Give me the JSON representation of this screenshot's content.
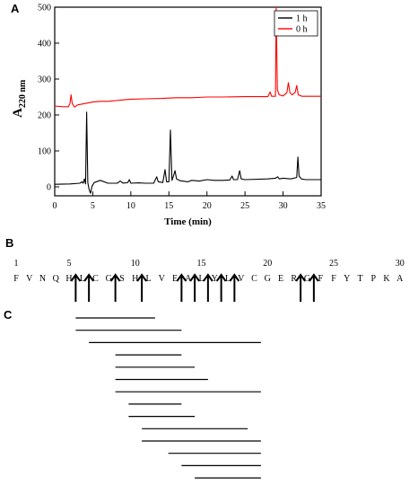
{
  "panels": {
    "a": "A",
    "b": "B",
    "c": "C"
  },
  "chart_data": {
    "type": "line",
    "xlabel": "Time (min)",
    "ylabel": "A",
    "ylabel_sub": "220 nm",
    "xlim": [
      0,
      35
    ],
    "ylim": [
      -25,
      500
    ],
    "x_ticks": [
      0,
      5,
      10,
      15,
      20,
      25,
      30,
      35
    ],
    "y_ticks": [
      0,
      100,
      200,
      300,
      400,
      500
    ],
    "legend": "top-right",
    "series": [
      {
        "name": "1 h",
        "color": "#000000",
        "points": [
          [
            0,
            7
          ],
          [
            2,
            8
          ],
          [
            3.3,
            10
          ],
          [
            3.6,
            14
          ],
          [
            3.75,
            10
          ],
          [
            3.9,
            22
          ],
          [
            4.05,
            8
          ],
          [
            4.2,
            208
          ],
          [
            4.35,
            12
          ],
          [
            4.5,
            -6
          ],
          [
            4.7,
            -18
          ],
          [
            4.9,
            2
          ],
          [
            5.2,
            12
          ],
          [
            6,
            18
          ],
          [
            7,
            10
          ],
          [
            8.2,
            10
          ],
          [
            8.6,
            16
          ],
          [
            9,
            10
          ],
          [
            9.6,
            12
          ],
          [
            9.8,
            20
          ],
          [
            10,
            10
          ],
          [
            11,
            11
          ],
          [
            12,
            10
          ],
          [
            13,
            10
          ],
          [
            13.4,
            28
          ],
          [
            13.6,
            14
          ],
          [
            14.2,
            12
          ],
          [
            14.5,
            48
          ],
          [
            14.7,
            14
          ],
          [
            15,
            14
          ],
          [
            15.2,
            158
          ],
          [
            15.4,
            18
          ],
          [
            15.6,
            30
          ],
          [
            15.8,
            45
          ],
          [
            16,
            22
          ],
          [
            16.5,
            17
          ],
          [
            17.5,
            14
          ],
          [
            18,
            18
          ],
          [
            19,
            16
          ],
          [
            20,
            20
          ],
          [
            21,
            18
          ],
          [
            22,
            18
          ],
          [
            23,
            19
          ],
          [
            23.3,
            30
          ],
          [
            23.5,
            20
          ],
          [
            24,
            20
          ],
          [
            24.3,
            45
          ],
          [
            24.5,
            22
          ],
          [
            25,
            20
          ],
          [
            28,
            22
          ],
          [
            29,
            24
          ],
          [
            29.3,
            28
          ],
          [
            29.5,
            22
          ],
          [
            30,
            24
          ],
          [
            31,
            22
          ],
          [
            31.8,
            26
          ],
          [
            31.95,
            83
          ],
          [
            32.1,
            30
          ],
          [
            32.4,
            22
          ],
          [
            33,
            20
          ],
          [
            35,
            20
          ]
        ]
      },
      {
        "name": "0 h",
        "color": "#ff0000",
        "points": [
          [
            0,
            225
          ],
          [
            1,
            223
          ],
          [
            1.8,
            223
          ],
          [
            2,
            232
          ],
          [
            2.15,
            256
          ],
          [
            2.3,
            232
          ],
          [
            2.6,
            222
          ],
          [
            3,
            228
          ],
          [
            4,
            232
          ],
          [
            5,
            236
          ],
          [
            6,
            238
          ],
          [
            7,
            238
          ],
          [
            8,
            240
          ],
          [
            9,
            242
          ],
          [
            10,
            244
          ],
          [
            12,
            245
          ],
          [
            14,
            246
          ],
          [
            16,
            248
          ],
          [
            18,
            248
          ],
          [
            20,
            250
          ],
          [
            22,
            250
          ],
          [
            25,
            251
          ],
          [
            28,
            251
          ],
          [
            28.3,
            264
          ],
          [
            28.5,
            252
          ],
          [
            29,
            252
          ],
          [
            29.1,
            500
          ],
          [
            29.25,
            270
          ],
          [
            29.5,
            256
          ],
          [
            30,
            253
          ],
          [
            30.5,
            262
          ],
          [
            30.7,
            290
          ],
          [
            30.9,
            262
          ],
          [
            31.2,
            256
          ],
          [
            31.6,
            263
          ],
          [
            31.8,
            282
          ],
          [
            32,
            256
          ],
          [
            32.5,
            252
          ],
          [
            33,
            252
          ],
          [
            35,
            252
          ]
        ]
      }
    ]
  },
  "sequence": {
    "residues": [
      "F",
      "V",
      "N",
      "Q",
      "H",
      "L",
      "C",
      "G",
      "S",
      "H",
      "L",
      "V",
      "E",
      "A",
      "L",
      "Y",
      "L",
      "V",
      "C",
      "G",
      "E",
      "R",
      "G",
      "F",
      "F",
      "Y",
      "T",
      "P",
      "K",
      "A"
    ],
    "numbers": [
      1,
      5,
      10,
      15,
      20,
      25,
      30
    ],
    "cleavage_after": [
      5,
      6,
      8,
      10,
      13,
      14,
      15,
      16,
      17,
      22,
      23
    ]
  },
  "fragments": [
    [
      5,
      11
    ],
    [
      5,
      13
    ],
    [
      6,
      19
    ],
    [
      8,
      13
    ],
    [
      8,
      14
    ],
    [
      8,
      15
    ],
    [
      8,
      19
    ],
    [
      9,
      13
    ],
    [
      9,
      14
    ],
    [
      10,
      18
    ],
    [
      10,
      19
    ],
    [
      12,
      19
    ],
    [
      13,
      19
    ],
    [
      14,
      19
    ]
  ]
}
